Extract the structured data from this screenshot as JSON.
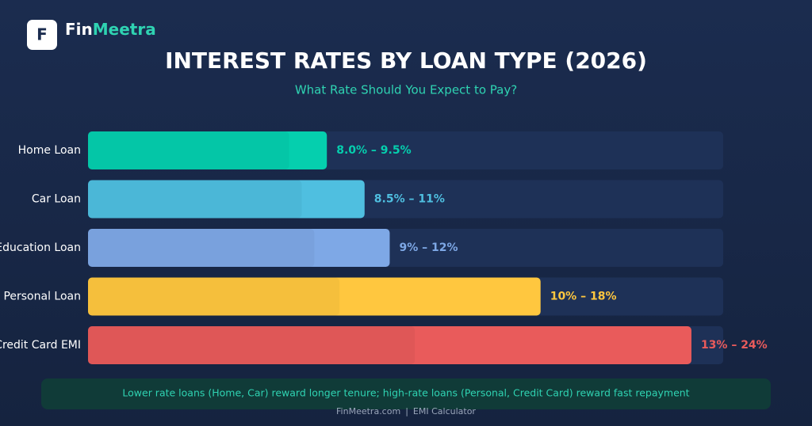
{
  "brand": {
    "logo": "F",
    "name_first": "Fin",
    "name_second": "Meetra"
  },
  "chart_data": {
    "type": "bar",
    "orientation": "horizontal",
    "title": "INTEREST RATES BY LOAN TYPE (2026)",
    "subtitle": "What Rate Should You Expect to Pay?",
    "categories": [
      "Home Loan",
      "Car Loan",
      "Education Loan",
      "Personal Loan",
      "Credit Card EMI"
    ],
    "low": [
      8.0,
      8.5,
      9,
      10,
      13
    ],
    "high": [
      9.5,
      11,
      12,
      18,
      24
    ],
    "value_labels": [
      "8.0% – 9.5%",
      "8.5% – 11%",
      "9% – 12%",
      "10% – 18%",
      "13% – 24%"
    ],
    "colors": [
      "#05cfae",
      "#4fbfe0",
      "#7ea8e6",
      "#ffc73f",
      "#e95b5b"
    ]
  },
  "note": "Lower rate loans (Home, Car) reward longer tenure; high-rate loans (Personal, Credit Card) reward fast repayment",
  "footer": {
    "site": "FinMeetra.com",
    "separator": "|",
    "tool": "EMI Calculator"
  }
}
